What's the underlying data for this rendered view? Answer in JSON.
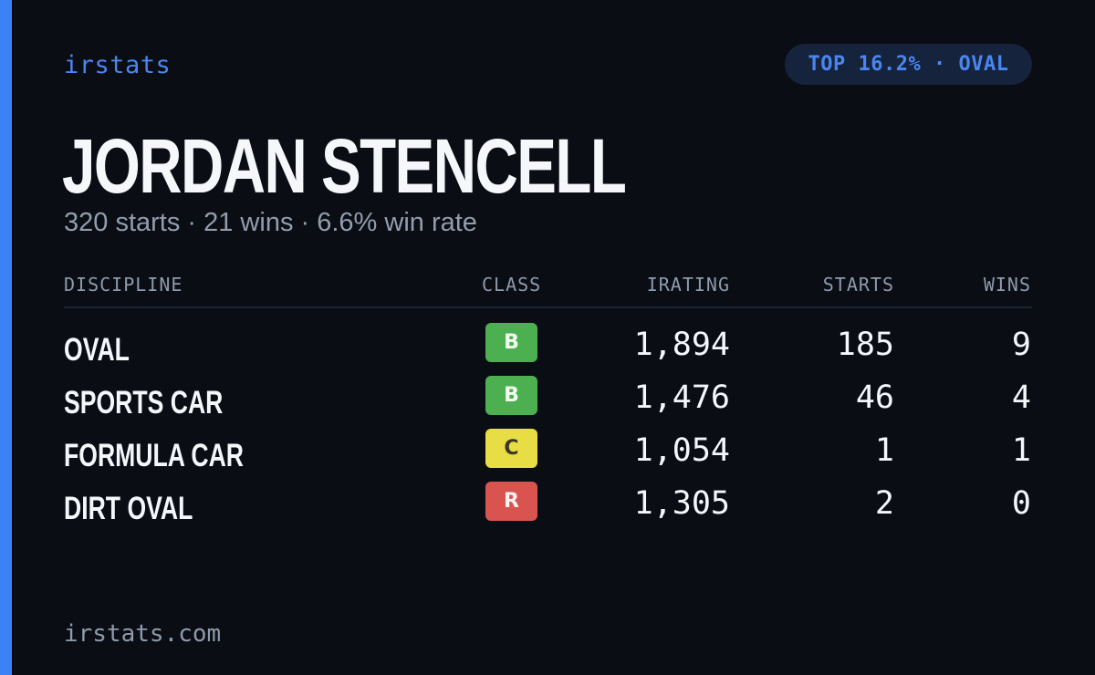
{
  "brand": "irstats",
  "rank_pill": "TOP 16.2% · OVAL",
  "driver_name": "JORDAN STENCELL",
  "summary": "320 starts · 21 wins · 6.6% win rate",
  "table": {
    "headers": {
      "discipline": "DISCIPLINE",
      "class": "CLASS",
      "irating": "IRATING",
      "starts": "STARTS",
      "wins": "WINS"
    },
    "rows": [
      {
        "discipline": "OVAL",
        "class": "B",
        "irating": "1,894",
        "starts": "185",
        "wins": "9"
      },
      {
        "discipline": "SPORTS CAR",
        "class": "B",
        "irating": "1,476",
        "starts": "46",
        "wins": "4"
      },
      {
        "discipline": "FORMULA CAR",
        "class": "C",
        "irating": "1,054",
        "starts": "1",
        "wins": "1"
      },
      {
        "discipline": "DIRT OVAL",
        "class": "R",
        "irating": "1,305",
        "starts": "2",
        "wins": "0"
      }
    ]
  },
  "footer_url": "irstats.com",
  "colors": {
    "background": "#0a0d14",
    "accent": "#3b82f6",
    "class_b": "#4caf50",
    "class_c": "#e8dd45",
    "class_r": "#d9534f"
  }
}
